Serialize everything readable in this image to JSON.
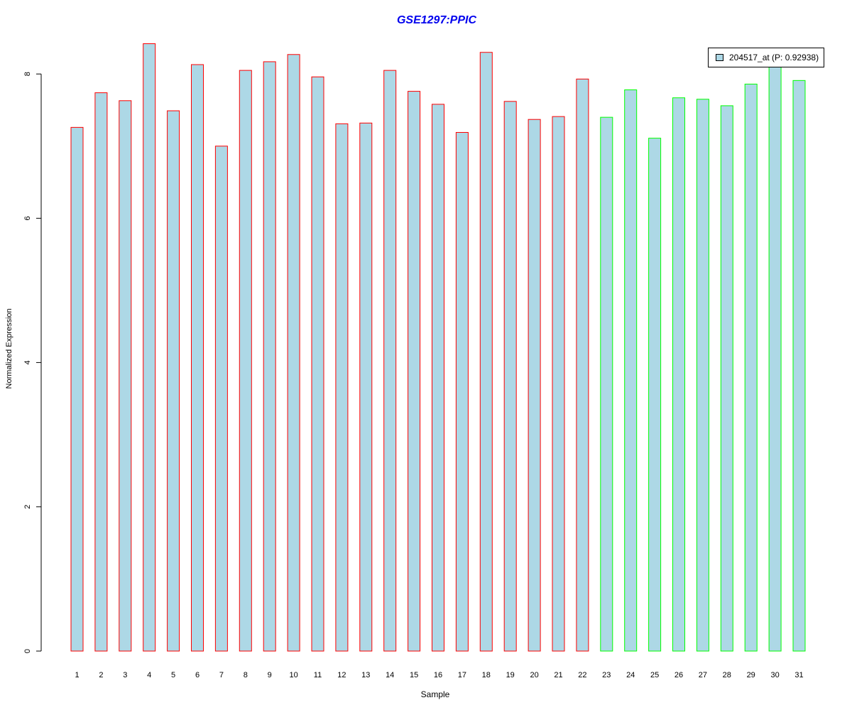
{
  "chart_data": {
    "type": "bar",
    "title": "GSE1297:PPIC",
    "xlabel": "Sample",
    "ylabel": "Normalized Expression",
    "ylim": [
      0,
      8.4
    ],
    "yticks": [
      "0",
      "2",
      "4",
      "6",
      "8"
    ],
    "categories": [
      "1",
      "2",
      "3",
      "4",
      "5",
      "6",
      "7",
      "8",
      "9",
      "10",
      "11",
      "12",
      "13",
      "14",
      "15",
      "16",
      "17",
      "18",
      "19",
      "20",
      "21",
      "22",
      "23",
      "24",
      "25",
      "26",
      "27",
      "28",
      "29",
      "30",
      "31"
    ],
    "values": [
      7.26,
      7.74,
      7.63,
      8.42,
      7.49,
      8.13,
      7.0,
      8.05,
      8.17,
      8.27,
      7.96,
      7.31,
      7.32,
      8.05,
      7.76,
      7.58,
      7.19,
      8.3,
      7.62,
      7.37,
      7.41,
      7.93,
      7.4,
      7.78,
      7.11,
      7.67,
      7.65,
      7.56,
      7.86,
      8.1,
      7.91
    ],
    "group_count_red": 22,
    "colors": {
      "fill": "#add8e6",
      "outline_group1": "#ff0000",
      "outline_group2": "#00ff00",
      "title": "#0000ee"
    },
    "legend": {
      "label": "204517_at (P: 0.92938)",
      "position": "top-right"
    }
  }
}
